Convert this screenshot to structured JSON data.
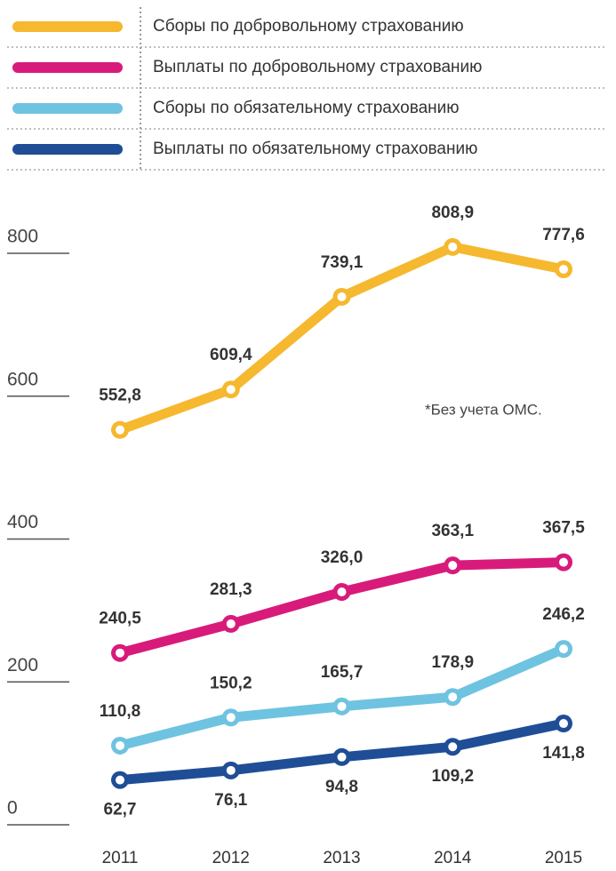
{
  "chart_data": {
    "type": "line",
    "categories": [
      "2011",
      "2012",
      "2013",
      "2014",
      "2015"
    ],
    "series": [
      {
        "name": "Сборы по добровольному страхованию",
        "color": "#f5b82e",
        "values": [
          552.8,
          609.4,
          739.1,
          808.9,
          777.6
        ],
        "value_labels": [
          "552,8",
          "609,4",
          "739,1",
          "808,9",
          "777,6"
        ]
      },
      {
        "name": "Выплаты по добровольному страхованию",
        "color": "#d81b7a",
        "values": [
          240.5,
          281.3,
          326.0,
          363.1,
          367.5
        ],
        "value_labels": [
          "240,5",
          "281,3",
          "326,0",
          "363,1",
          "367,5"
        ]
      },
      {
        "name": "Сборы по обязательному страхованию",
        "color": "#6ec3e0",
        "values": [
          110.8,
          150.2,
          165.7,
          178.9,
          246.2
        ],
        "value_labels": [
          "110,8",
          "150,2",
          "165,7",
          "178,9",
          "246,2"
        ]
      },
      {
        "name": "Выплаты по обязательному страхованию",
        "color": "#1f4e96",
        "values": [
          62.7,
          76.1,
          94.8,
          109.2,
          141.8
        ],
        "value_labels": [
          "62,7",
          "76,1",
          "94,8",
          "109,2",
          "141,8"
        ]
      }
    ],
    "annotation": "*Без учета ОМС.",
    "ylim": [
      0,
      800
    ],
    "yticks": [
      0,
      200,
      400,
      600,
      800
    ]
  }
}
